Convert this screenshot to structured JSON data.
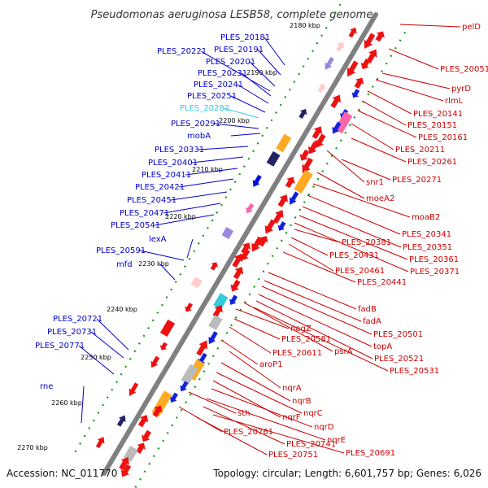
{
  "title": "Pseudomonas aeruginosa LESB58, complete genome",
  "footer": {
    "accession": "Accession: NC_011770",
    "topology": "Topology: circular; Length: 6,601,757 bp; Genes: 6,026"
  },
  "colors": {
    "left_label": "#0000cc",
    "left_highlight": "#33ccdd",
    "right_label": "#cc0000",
    "backbone": "#808080",
    "dots": "#119911"
  },
  "kbp_ticks": [
    "2180 kbp",
    "2190 kbp",
    "2200 kbp",
    "2210 kbp",
    "2220 kbp",
    "2230 kbp",
    "2240 kbp",
    "2250 kbp",
    "2260 kbp",
    "2270 kbp"
  ],
  "left_labels": [
    {
      "text": "PLES_20181"
    },
    {
      "text": "PLES_20191"
    },
    {
      "text": "PLES_20221"
    },
    {
      "text": "PLES_20201"
    },
    {
      "text": "PLES_20231"
    },
    {
      "text": "PLES_20241"
    },
    {
      "text": "PLES_20251"
    },
    {
      "text": "PLES_20282",
      "highlight": true
    },
    {
      "text": "PLES_20291"
    },
    {
      "text": "mobA"
    },
    {
      "text": "PLES_20331"
    },
    {
      "text": "PLES_20401"
    },
    {
      "text": "PLES_20411"
    },
    {
      "text": "PLES_20421"
    },
    {
      "text": "PLES_20451"
    },
    {
      "text": "PLES_20471"
    },
    {
      "text": "PLES_20541"
    },
    {
      "text": "lexA"
    },
    {
      "text": "PLES_20591"
    },
    {
      "text": "mfd"
    },
    {
      "text": "PLES_20721"
    },
    {
      "text": "PLES_20731"
    },
    {
      "text": "PLES_20771"
    },
    {
      "text": "rne"
    }
  ],
  "right_labels": [
    {
      "text": "pelD"
    },
    {
      "text": "PLES_20051"
    },
    {
      "text": "pyrD"
    },
    {
      "text": "rlmL"
    },
    {
      "text": "PLES_20141"
    },
    {
      "text": "PLES_20151"
    },
    {
      "text": "PLES_20161"
    },
    {
      "text": "PLES_20211"
    },
    {
      "text": "PLES_20261"
    },
    {
      "text": "snr1"
    },
    {
      "text": "PLES_20271"
    },
    {
      "text": "moeA2"
    },
    {
      "text": "moaB2"
    },
    {
      "text": "PLES_20341"
    },
    {
      "text": "PLES_20381"
    },
    {
      "text": "PLES_20351"
    },
    {
      "text": "PLES_20431"
    },
    {
      "text": "PLES_20361"
    },
    {
      "text": "PLES_20371"
    },
    {
      "text": "PLES_20461"
    },
    {
      "text": "PLES_20441"
    },
    {
      "text": "fadB"
    },
    {
      "text": "fadA"
    },
    {
      "text": "nagZ"
    },
    {
      "text": "PLES_20501"
    },
    {
      "text": "PLES_20581"
    },
    {
      "text": "topA"
    },
    {
      "text": "PLES_20611"
    },
    {
      "text": "psrA"
    },
    {
      "text": "PLES_20521"
    },
    {
      "text": "aroP1"
    },
    {
      "text": "PLES_20531"
    },
    {
      "text": "nqrA"
    },
    {
      "text": "nqrB"
    },
    {
      "text": "nqrC"
    },
    {
      "text": "nqrF"
    },
    {
      "text": "nqrD"
    },
    {
      "text": "sth"
    },
    {
      "text": "nqrE"
    },
    {
      "text": "PLES_20761"
    },
    {
      "text": "PLES_20741"
    },
    {
      "text": "PLES_20691"
    },
    {
      "text": "PLES_20751"
    }
  ]
}
